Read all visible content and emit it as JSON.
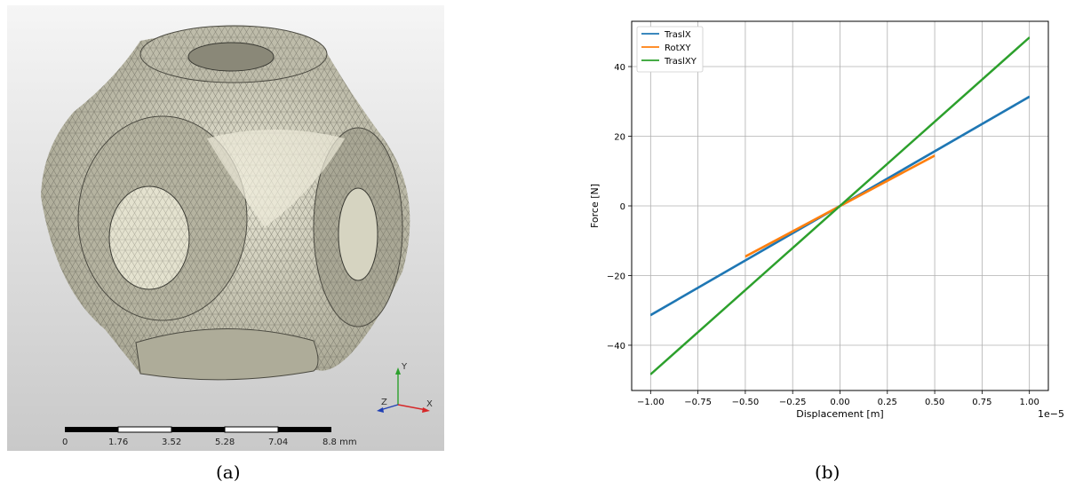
{
  "captions": {
    "a": "(a)",
    "b": "(b)"
  },
  "mesh_view": {
    "scale_bar": {
      "ticks": [
        "0",
        "1.76",
        "3.52",
        "5.28",
        "7.04",
        "8.8 mm"
      ]
    },
    "axes_triad": {
      "x": "X",
      "y": "Y",
      "z": "Z"
    },
    "colors": {
      "mesh_fill": "#c9c7b4",
      "mesh_line": "#5e5d52",
      "background_top": "#f3f3f3",
      "background_bottom": "#c8c8c8"
    }
  },
  "chart_data": {
    "type": "line",
    "xlabel": "Displacement [m]",
    "ylabel": "Force [N]",
    "x_multiplier": "1e−5",
    "xlim": [
      -1.1,
      1.1
    ],
    "ylim": [
      -53,
      53
    ],
    "xticks": [
      -1.0,
      -0.75,
      -0.5,
      -0.25,
      0.0,
      0.25,
      0.5,
      0.75,
      1.0
    ],
    "xtick_labels": [
      "−1.00",
      "−0.75",
      "−0.50",
      "−0.25",
      "0.00",
      "0.25",
      "0.50",
      "0.75",
      "1.00"
    ],
    "yticks": [
      -40,
      -20,
      0,
      20,
      40
    ],
    "ytick_labels": [
      "−40",
      "−20",
      "0",
      "20",
      "40"
    ],
    "grid": true,
    "legend_position": "top-left",
    "series": [
      {
        "name": "TraslX",
        "color": "#1f77b4",
        "x": [
          -1.0,
          1.0
        ],
        "y": [
          -31.5,
          31.2
        ],
        "x2": [
          -1.0,
          1.0
        ],
        "y2": [
          -31.2,
          31.5
        ]
      },
      {
        "name": "RotXY",
        "color": "#ff7f0e",
        "x": [
          -0.5,
          0.5
        ],
        "y": [
          -14.7,
          14.3
        ],
        "x2": [
          -0.5,
          0.5
        ],
        "y2": [
          -14.4,
          14.6
        ]
      },
      {
        "name": "TraslXY",
        "color": "#2ca02c",
        "x": [
          -1.0,
          1.0
        ],
        "y": [
          -48.5,
          48.2
        ],
        "x2": [
          -1.0,
          1.0
        ],
        "y2": [
          -48.2,
          48.5
        ]
      }
    ]
  }
}
